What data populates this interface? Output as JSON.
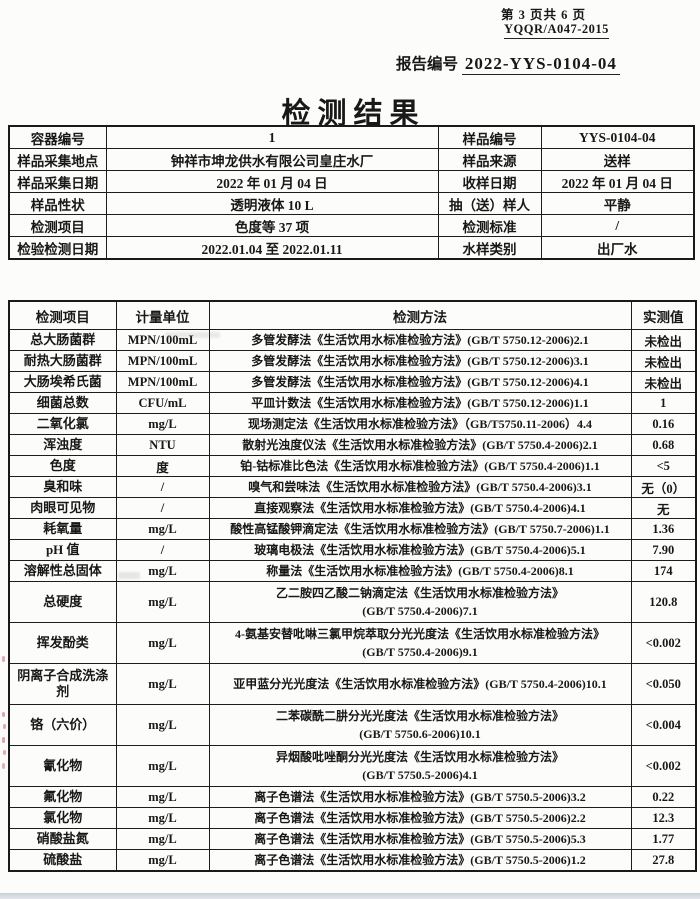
{
  "page": {
    "page_info": "第 3 页共 6 页",
    "doc_code": "YQQR/A047-2015",
    "report_no_label": "报告编号",
    "report_no": "2022-YYS-0104-04",
    "title": "检测结果"
  },
  "colors": {
    "paper": "#fcfcfa",
    "ink": "#181818",
    "table_border": "#1d1d1d",
    "scan_strip": "#cfd6dd",
    "artifact_red": "rgba(204,92,104,0.55)"
  },
  "info_table": {
    "rows": [
      {
        "l1": "容器编号",
        "v1": "1",
        "l2": "样品编号",
        "v2": "YYS-0104-04"
      },
      {
        "l1": "样品采集地点",
        "v1": "钟祥市坤龙供水有限公司皇庄水厂",
        "l2": "样品来源",
        "v2": "送样"
      },
      {
        "l1": "样品采集日期",
        "v1": "2022 年 01 月 04 日",
        "l2": "收样日期",
        "v2": "2022 年 01 月 04 日"
      },
      {
        "l1": "样品性状",
        "v1": "透明液体 10 L",
        "l2": "抽（送）样人",
        "v2": "平静"
      },
      {
        "l1": "检测项目",
        "v1": "色度等 37 项",
        "l2": "检测标准",
        "v2": "/"
      },
      {
        "l1": "检验检测日期",
        "v1": "2022.01.04 至 2022.01.11",
        "l2": "水样类别",
        "v2": "出厂水"
      }
    ]
  },
  "results_table": {
    "headers": [
      "检测项目",
      "计量单位",
      "检测方法",
      "实测值"
    ],
    "rows": [
      {
        "item": "总大肠菌群",
        "unit": "MPN/100mL",
        "method": "多管发酵法《生活饮用水标准检验方法》(GB/T 5750.12-2006)2.1",
        "method2": "",
        "value": "未检出",
        "tall": false
      },
      {
        "item": "耐热大肠菌群",
        "unit": "MPN/100mL",
        "method": "多管发酵法《生活饮用水标准检验方法》(GB/T 5750.12-2006)3.1",
        "method2": "",
        "value": "未检出",
        "tall": false
      },
      {
        "item": "大肠埃希氏菌",
        "unit": "MPN/100mL",
        "method": "多管发酵法《生活饮用水标准检验方法》(GB/T 5750.12-2006)4.1",
        "method2": "",
        "value": "未检出",
        "tall": false
      },
      {
        "item": "细菌总数",
        "unit": "CFU/mL",
        "method": "平皿计数法《生活饮用水标准检验方法》(GB/T 5750.12-2006)1.1",
        "method2": "",
        "value": "1",
        "tall": false
      },
      {
        "item": "二氧化氯",
        "unit": "mg/L",
        "method": "现场测定法《生活饮用水标准检验方法》（GB/T5750.11-2006）4.4",
        "method2": "",
        "value": "0.16",
        "tall": false
      },
      {
        "item": "浑浊度",
        "unit": "NTU",
        "method": "散射光浊度仪法《生活饮用水标准检验方法》(GB/T 5750.4-2006)2.1",
        "method2": "",
        "value": "0.68",
        "tall": false
      },
      {
        "item": "色度",
        "unit": "度",
        "method": "铂-钴标准比色法《生活饮用水标准检验方法》(GB/T 5750.4-2006)1.1",
        "method2": "",
        "value": "<5",
        "tall": false
      },
      {
        "item": "臭和味",
        "unit": "/",
        "method": "嗅气和尝味法《生活饮用水标准检验方法》(GB/T 5750.4-2006)3.1",
        "method2": "",
        "value": "无（0）",
        "tall": false
      },
      {
        "item": "肉眼可见物",
        "unit": "/",
        "method": "直接观察法《生活饮用水标准检验方法》(GB/T 5750.4-2006)4.1",
        "method2": "",
        "value": "无",
        "tall": false
      },
      {
        "item": "耗氧量",
        "unit": "mg/L",
        "method": "酸性高锰酸钾滴定法《生活饮用水标准检验方法》(GB/T 5750.7-2006)1.1",
        "method2": "",
        "value": "1.36",
        "tall": false
      },
      {
        "item": "pH 值",
        "unit": "/",
        "method": "玻璃电极法《生活饮用水标准检验方法》(GB/T 5750.4-2006)5.1",
        "method2": "",
        "value": "7.90",
        "tall": false
      },
      {
        "item": "溶解性总固体",
        "unit": "mg/L",
        "method": "称量法《生活饮用水标准检验方法》(GB/T 5750.4-2006)8.1",
        "method2": "",
        "value": "174",
        "tall": false
      },
      {
        "item": "总硬度",
        "unit": "mg/L",
        "method": "乙二胺四乙酸二钠滴定法《生活饮用水标准检验方法》",
        "method2": "(GB/T 5750.4-2006)7.1",
        "value": "120.8",
        "tall": true
      },
      {
        "item": "挥发酚类",
        "unit": "mg/L",
        "method": "4-氨基安替吡啉三氯甲烷萃取分光光度法《生活饮用水标准检验方法》",
        "method2": "(GB/T 5750.4-2006)9.1",
        "value": "<0.002",
        "tall": true
      },
      {
        "item": "阴离子合成洗涤剂",
        "unit": "mg/L",
        "method": "亚甲蓝分光光度法《生活饮用水标准检验方法》(GB/T 5750.4-2006)10.1",
        "method2": "",
        "value": "<0.050",
        "tall": true
      },
      {
        "item": "铬（六价）",
        "unit": "mg/L",
        "method": "二苯碳酰二肼分光光度法《生活饮用水标准检验方法》",
        "method2": "(GB/T 5750.6-2006)10.1",
        "value": "<0.004",
        "tall": true
      },
      {
        "item": "氰化物",
        "unit": "mg/L",
        "method": "异烟酸吡唑酮分光光度法《生活饮用水标准检验方法》",
        "method2": "(GB/T 5750.5-2006)4.1",
        "value": "<0.002",
        "tall": true
      },
      {
        "item": "氟化物",
        "unit": "mg/L",
        "method": "离子色谱法《生活饮用水标准检验方法》(GB/T 5750.5-2006)3.2",
        "method2": "",
        "value": "0.22",
        "tall": false
      },
      {
        "item": "氯化物",
        "unit": "mg/L",
        "method": "离子色谱法《生活饮用水标准检验方法》(GB/T 5750.5-2006)2.2",
        "method2": "",
        "value": "12.3",
        "tall": false
      },
      {
        "item": "硝酸盐氮",
        "unit": "mg/L",
        "method": "离子色谱法《生活饮用水标准检验方法》(GB/T 5750.5-2006)5.3",
        "method2": "",
        "value": "1.77",
        "tall": false
      },
      {
        "item": "硫酸盐",
        "unit": "mg/L",
        "method": "离子色谱法《生活饮用水标准检验方法》(GB/T 5750.5-2006)1.2",
        "method2": "",
        "value": "27.8",
        "tall": false
      }
    ]
  }
}
